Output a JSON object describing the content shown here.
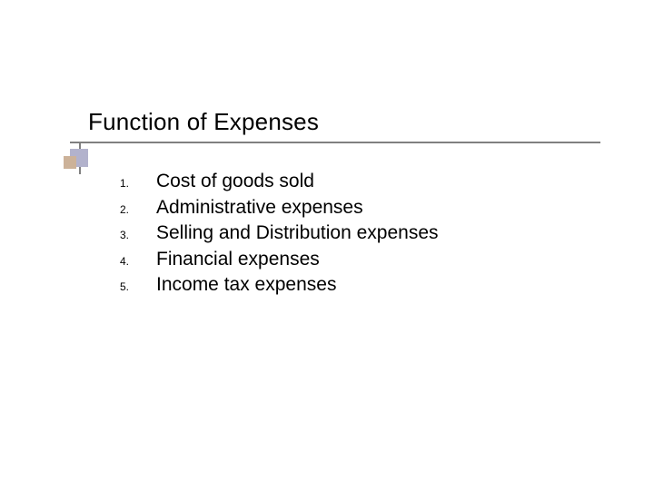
{
  "slide": {
    "title": "Function of Expenses",
    "title_fontsize": 26,
    "title_color": "#000000",
    "underline_color": "#808080",
    "accent_square_outer_color": "#b2b2cc",
    "accent_square_inner_color": "#ccb299",
    "background_color": "#ffffff",
    "list": {
      "number_fontsize": 12,
      "text_fontsize": 21,
      "text_color": "#000000",
      "items": [
        {
          "n": "1.",
          "text": "Cost of goods sold"
        },
        {
          "n": "2.",
          "text": "Administrative expenses"
        },
        {
          "n": "3.",
          "text": "Selling and Distribution expenses"
        },
        {
          "n": "4.",
          "text": "Financial expenses"
        },
        {
          "n": "5.",
          "text": "Income tax expenses"
        }
      ]
    }
  }
}
